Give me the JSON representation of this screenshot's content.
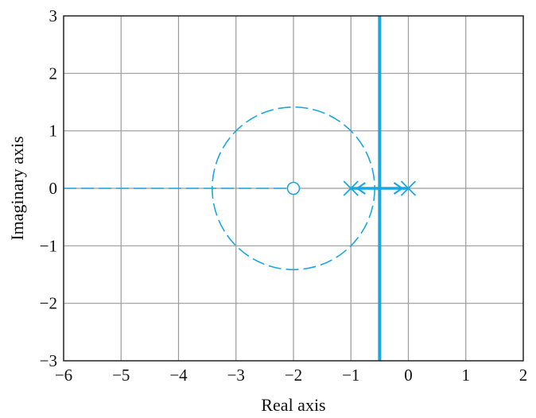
{
  "chart_data": {
    "type": "line",
    "title": "",
    "xlabel": "Real axis",
    "ylabel": "Imaginary axis",
    "xlim": [
      -6,
      2
    ],
    "ylim": [
      -3,
      3
    ],
    "xticks": [
      -6,
      -5,
      -4,
      -3,
      -2,
      -1,
      0,
      1,
      2
    ],
    "yticks": [
      -3,
      -2,
      -1,
      0,
      1,
      2,
      3
    ],
    "xtick_labels": [
      "−6",
      "−5",
      "−4",
      "−3",
      "−2",
      "−1",
      "0",
      "1",
      "2"
    ],
    "ytick_labels": [
      "−3",
      "−2",
      "−1",
      "0",
      "1",
      "2",
      "3"
    ],
    "grid": true,
    "poles": [
      {
        "re": -1,
        "im": 0
      },
      {
        "re": 0,
        "im": 0
      }
    ],
    "zeros": [
      {
        "re": -2,
        "im": 0
      }
    ],
    "locus_segments": [
      {
        "style": "solid",
        "points": [
          [
            -1,
            0
          ],
          [
            0,
            0
          ]
        ]
      }
    ],
    "vertical_line": {
      "style": "solid",
      "x": -0.5
    },
    "dashed_circle": {
      "center": [
        -2,
        0
      ],
      "radius": 1.414
    },
    "dashed_real_axis": {
      "from": -6,
      "to": -2
    },
    "colors": {
      "locus": "#19a7e0",
      "grid": "#9a9a9a",
      "axes": "#222222"
    }
  }
}
